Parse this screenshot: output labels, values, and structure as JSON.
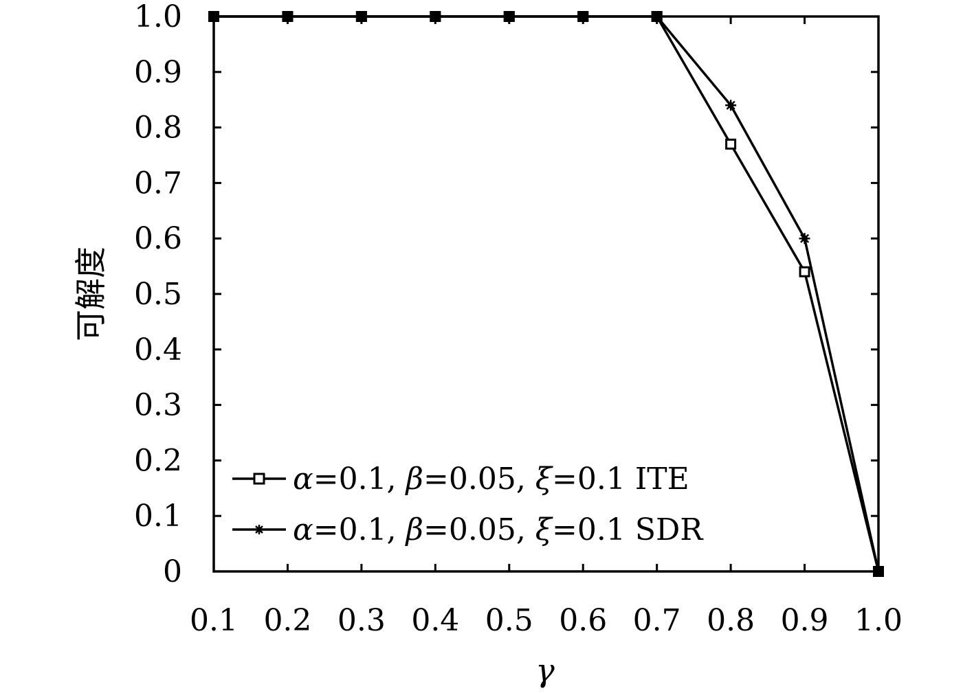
{
  "chart_data": {
    "type": "line",
    "x": [
      0.1,
      0.2,
      0.3,
      0.4,
      0.5,
      0.6,
      0.7,
      0.8,
      0.9,
      1.0
    ],
    "x_tick_labels": [
      "0.1",
      "0.2",
      "0.3",
      "0.4",
      "0.5",
      "0.6",
      "0.7",
      "0.8",
      "0.9",
      "1.0"
    ],
    "y_tick_labels": [
      "0",
      "0.1",
      "0.2",
      "0.3",
      "0.4",
      "0.5",
      "0.6",
      "0.7",
      "0.8",
      "0.9",
      "1.0"
    ],
    "xlabel": "γ",
    "ylabel": "可解度",
    "xlim": [
      0.1,
      1.0
    ],
    "ylim": [
      0,
      1.0
    ],
    "grid": false,
    "legend_position": "bottom-left",
    "series": [
      {
        "name": "α=0.1, β=0.05, ξ=0.1 ITE",
        "marker": "open-square",
        "values": [
          1.0,
          1.0,
          1.0,
          1.0,
          1.0,
          1.0,
          1.0,
          0.77,
          0.54,
          0.0
        ]
      },
      {
        "name": "α=0.1, β=0.05, ξ=0.1 SDR",
        "marker": "asterisk",
        "values": [
          1.0,
          1.0,
          1.0,
          1.0,
          1.0,
          1.0,
          1.0,
          0.84,
          0.6,
          0.0
        ]
      }
    ],
    "legend": [
      {
        "alpha": "α",
        "alpha_value": "=0.1, ",
        "beta": "β",
        "beta_value": "=0.05, ",
        "xi": "ξ",
        "xi_value": "=0.1 ITE"
      },
      {
        "alpha": "α",
        "alpha_value": "=0.1, ",
        "beta": "β",
        "beta_value": "=0.05, ",
        "xi": "ξ",
        "xi_value": "=0.1 SDR"
      }
    ],
    "colors": {
      "line": "#000000",
      "background": "#ffffff"
    }
  }
}
